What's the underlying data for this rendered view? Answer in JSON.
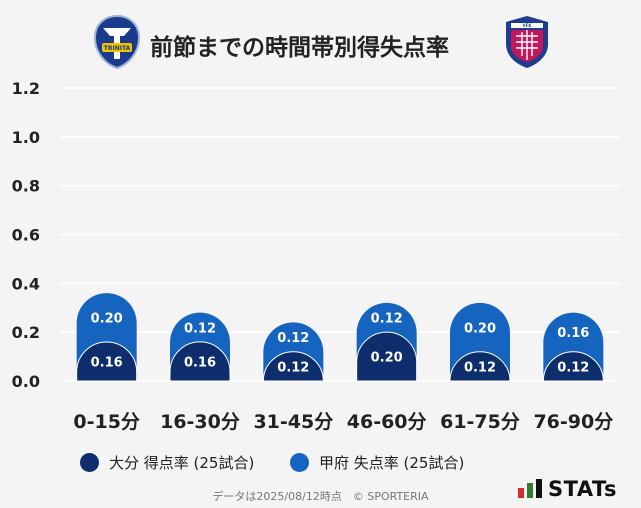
{
  "header": {
    "title": "前節までの時間帯別得失点率",
    "home_emblem": {
      "name": "oita-trinita-emblem",
      "text": "TRINITA"
    },
    "away_emblem": {
      "name": "ventforet-kofu-emblem",
      "text": "VFK"
    }
  },
  "chart_data": {
    "type": "bar",
    "stacked": true,
    "categories": [
      "0-15分",
      "16-30分",
      "31-45分",
      "46-60分",
      "61-75分",
      "76-90分"
    ],
    "series": [
      {
        "name": "大分 得点率 (25試合)",
        "values": [
          0.16,
          0.16,
          0.12,
          0.2,
          0.12,
          0.12
        ],
        "labels": [
          "0.16",
          "0.16",
          "0.12",
          "0.20",
          "0.12",
          "0.12"
        ],
        "color": "#0d2d6c"
      },
      {
        "name": "甲府 失点率 (25試合)",
        "values": [
          0.2,
          0.12,
          0.12,
          0.12,
          0.2,
          0.16
        ],
        "labels": [
          "0.20",
          "0.12",
          "0.12",
          "0.12",
          "0.20",
          "0.16"
        ],
        "color": "#1565c0"
      }
    ],
    "yticks": [
      "0.0",
      "0.2",
      "0.4",
      "0.6",
      "0.8",
      "1.0",
      "1.2"
    ],
    "ylim": [
      0,
      1.2
    ],
    "grid": true,
    "legend_position": "bottom"
  },
  "footer": {
    "text": "データは2025/08/12時点　© SPORTERIA"
  },
  "brand": {
    "text": "STATs",
    "colors": [
      "#d32f2f",
      "#2e7d32",
      "#111111"
    ]
  }
}
